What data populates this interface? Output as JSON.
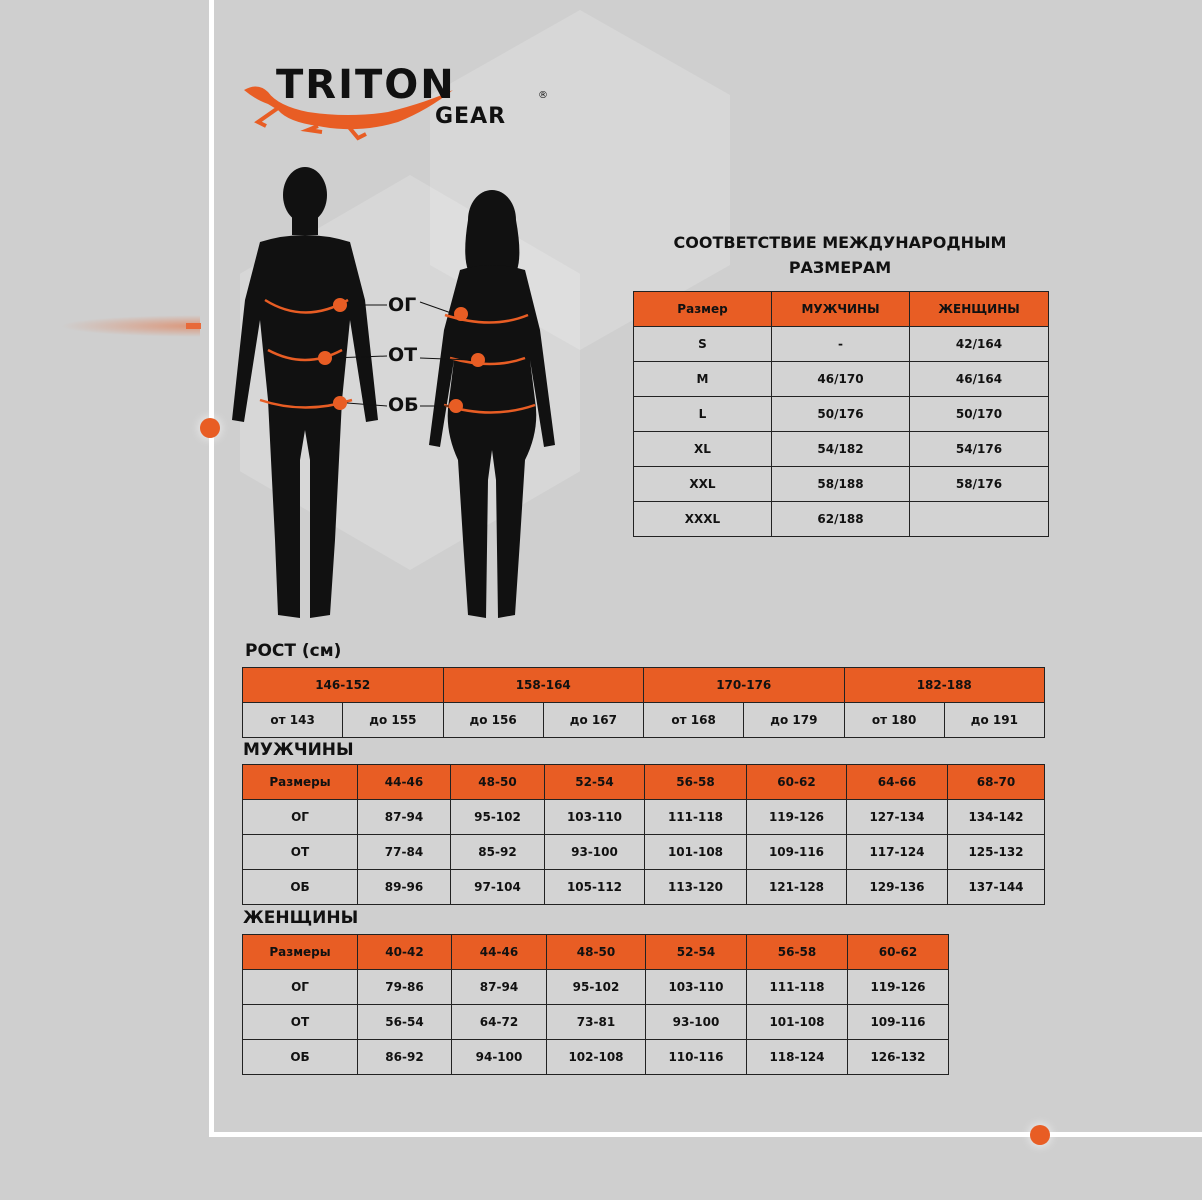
{
  "brand": {
    "name": "TRITON",
    "sub": "GEAR",
    "mark": "®",
    "colors": {
      "accent": "#e85d24",
      "background": "#cfcfcf"
    }
  },
  "figure_labels": {
    "chest": "ОГ",
    "waist": "ОТ",
    "hips": "ОБ"
  },
  "intl": {
    "title": "СООТВЕТСТВИЕ МЕЖДУНАРОДНЫМ РАЗМЕРАМ",
    "headers": [
      "Размер",
      "МУЖЧИНЫ",
      "ЖЕНЩИНЫ"
    ],
    "rows": [
      [
        "S",
        "-",
        "42/164"
      ],
      [
        "M",
        "46/170",
        "46/164"
      ],
      [
        "L",
        "50/176",
        "50/170"
      ],
      [
        "XL",
        "54/182",
        "54/176"
      ],
      [
        "XXL",
        "58/188",
        "58/176"
      ],
      [
        "XXXL",
        "62/188",
        ""
      ]
    ]
  },
  "height": {
    "title": "РОСТ (см)",
    "groups": [
      "146-152",
      "158-164",
      "170-176",
      "182-188"
    ],
    "sub": [
      "от 143",
      "до 155",
      "до 156",
      "до 167",
      "от 168",
      "до 179",
      "от 180",
      "до 191"
    ]
  },
  "men": {
    "title": "МУЖЧИНЫ",
    "headers": [
      "Размеры",
      "44-46",
      "48-50",
      "52-54",
      "56-58",
      "60-62",
      "64-66",
      "68-70"
    ],
    "rows": [
      [
        "ОГ",
        "87-94",
        "95-102",
        "103-110",
        "111-118",
        "119-126",
        "127-134",
        "134-142"
      ],
      [
        "ОТ",
        "77-84",
        "85-92",
        "93-100",
        "101-108",
        "109-116",
        "117-124",
        "125-132"
      ],
      [
        "ОБ",
        "89-96",
        "97-104",
        "105-112",
        "113-120",
        "121-128",
        "129-136",
        "137-144"
      ]
    ]
  },
  "women": {
    "title": "ЖЕНЩИНЫ",
    "headers": [
      "Размеры",
      "40-42",
      "44-46",
      "48-50",
      "52-54",
      "56-58",
      "60-62"
    ],
    "rows": [
      [
        "ОГ",
        "79-86",
        "87-94",
        "95-102",
        "103-110",
        "111-118",
        "119-126"
      ],
      [
        "ОТ",
        "56-54",
        "64-72",
        "73-81",
        "93-100",
        "101-108",
        "109-116"
      ],
      [
        "ОБ",
        "86-92",
        "94-100",
        "102-108",
        "110-116",
        "118-124",
        "126-132"
      ]
    ]
  }
}
